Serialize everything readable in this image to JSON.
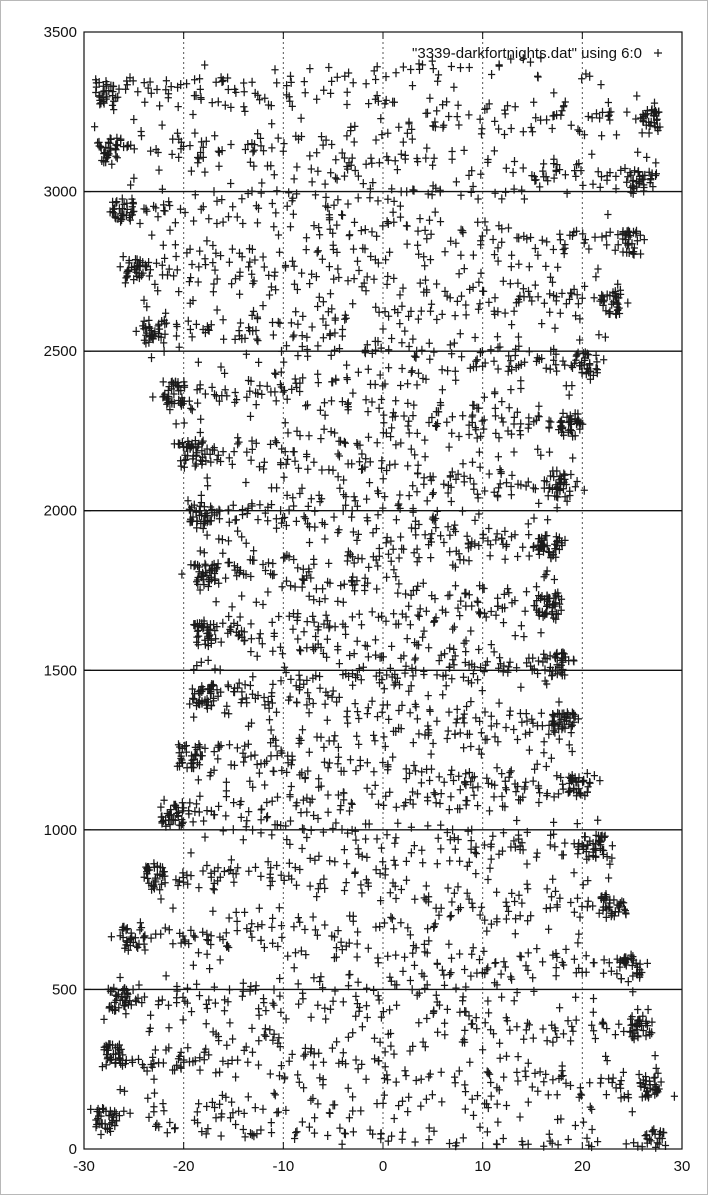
{
  "chart_data": {
    "type": "scatter",
    "title": "",
    "xlabel": "",
    "ylabel": "",
    "xlim": [
      -30,
      30
    ],
    "ylim": [
      0,
      3500
    ],
    "x_ticks": [
      -30,
      -20,
      -10,
      0,
      10,
      20,
      30
    ],
    "x_tick_labels": [
      "-30",
      "-20",
      "-10",
      "0",
      "10",
      "20",
      "30"
    ],
    "y_ticks": [
      0,
      500,
      1000,
      1500,
      2000,
      2500,
      3000,
      3500
    ],
    "y_tick_labels": [
      "0",
      "500",
      "1000",
      "1500",
      "2000",
      "2500",
      "3000",
      "3500"
    ],
    "grid": {
      "vertical": "dotted, at x ticks",
      "horizontal": "solid, at y ticks"
    },
    "legend": {
      "position": "top-right",
      "entries": [
        {
          "label": "\"3339-darkfortnights.dat\" using 6:0",
          "marker": "plus"
        }
      ]
    },
    "marker_color": "#1a1a1a",
    "series": [
      {
        "name": "\"3339-darkfortnights.dat\" using 6:0",
        "marker": "plus",
        "description_of_values": "x = column 6, y = record index 0..3400; points sweep back and forth between the band edges",
        "band_edges": [
          {
            "y": 0,
            "x_min": -29,
            "x_max": 28.5
          },
          {
            "y": 100,
            "x_min": -29,
            "x_max": 28.5
          },
          {
            "y": 200,
            "x_min": -28.5,
            "x_max": 28
          },
          {
            "y": 300,
            "x_min": -28.5,
            "x_max": 27.5
          },
          {
            "y": 400,
            "x_min": -28,
            "x_max": 27
          },
          {
            "y": 500,
            "x_min": -27.5,
            "x_max": 26.5
          },
          {
            "y": 600,
            "x_min": -26.5,
            "x_max": 25.5
          },
          {
            "y": 700,
            "x_min": -26,
            "x_max": 25
          },
          {
            "y": 800,
            "x_min": -24.5,
            "x_max": 24
          },
          {
            "y": 900,
            "x_min": -24,
            "x_max": 23
          },
          {
            "y": 1000,
            "x_min": -22.5,
            "x_max": 22
          },
          {
            "y": 1100,
            "x_min": -22,
            "x_max": 21
          },
          {
            "y": 1200,
            "x_min": -21,
            "x_max": 20.5
          },
          {
            "y": 1300,
            "x_min": -20,
            "x_max": 19.5
          },
          {
            "y": 1400,
            "x_min": -19.5,
            "x_max": 19
          },
          {
            "y": 1500,
            "x_min": -19,
            "x_max": 18.5
          },
          {
            "y": 1600,
            "x_min": -19,
            "x_max": 18
          },
          {
            "y": 1700,
            "x_min": -19,
            "x_max": 18
          },
          {
            "y": 1800,
            "x_min": -19,
            "x_max": 18
          },
          {
            "y": 1900,
            "x_min": -19,
            "x_max": 18
          },
          {
            "y": 2000,
            "x_min": -19.5,
            "x_max": 18.5
          },
          {
            "y": 2100,
            "x_min": -20,
            "x_max": 19
          },
          {
            "y": 2200,
            "x_min": -20.5,
            "x_max": 19.5
          },
          {
            "y": 2300,
            "x_min": -21.5,
            "x_max": 20
          },
          {
            "y": 2400,
            "x_min": -22.5,
            "x_max": 21
          },
          {
            "y": 2500,
            "x_min": -23.5,
            "x_max": 22
          },
          {
            "y": 2600,
            "x_min": -24.5,
            "x_max": 23.5
          },
          {
            "y": 2700,
            "x_min": -25.5,
            "x_max": 24.5
          },
          {
            "y": 2800,
            "x_min": -26.5,
            "x_max": 25.5
          },
          {
            "y": 2900,
            "x_min": -27,
            "x_max": 26.5
          },
          {
            "y": 3000,
            "x_min": -28,
            "x_max": 27
          },
          {
            "y": 3100,
            "x_min": -28.5,
            "x_max": 27.5
          },
          {
            "y": 3200,
            "x_min": -29,
            "x_max": 28
          },
          {
            "y": 3300,
            "x_min": -29,
            "x_max": 28
          },
          {
            "y": 3400,
            "x_min": -29,
            "x_max": 28.5
          }
        ],
        "left_clusters_y": [
          100,
          290,
          470,
          660,
          850,
          1040,
          1230,
          1420,
          1610,
          1800,
          1990,
          2180,
          2370,
          2560,
          2750,
          2940,
          3130,
          3310
        ],
        "right_clusters_y": [
          20,
          200,
          380,
          570,
          760,
          950,
          1140,
          1330,
          1520,
          1700,
          1890,
          2080,
          2270,
          2460,
          2650,
          2840,
          3030,
          3220
        ]
      }
    ]
  }
}
